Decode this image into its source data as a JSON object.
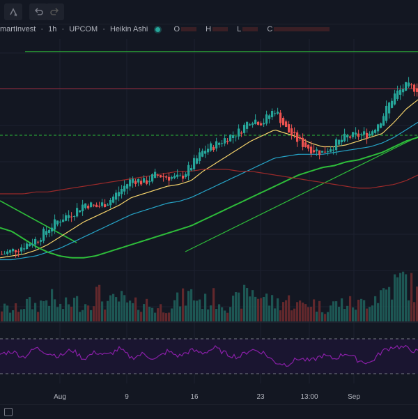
{
  "toolbar": {
    "indicator_icon": "indicators-remove-icon",
    "undo_icon": "undo-icon",
    "redo_icon": "redo-icon"
  },
  "legend": {
    "symbol": "martInvest",
    "interval": "1h",
    "exchange": "UPCOM",
    "chart_style": "Heikin Ashi",
    "sep": "·",
    "o_label": "O",
    "h_label": "H",
    "l_label": "L",
    "c_label": "C"
  },
  "x_axis": {
    "labels": [
      "Aug",
      "9",
      "16",
      "23",
      "13:00",
      "Sep"
    ]
  },
  "colors": {
    "background": "#131722",
    "up": "#26a69a",
    "down": "#ef5350",
    "ma_fast": "#f5d36b",
    "ma_mid": "#26a4c7",
    "ma_slow": "#2ebd3a",
    "ma_long": "#9b2a2a",
    "rsi": "#8a1fa8",
    "trendline": "#2ebd3a",
    "resistance": "#9b2a3a"
  },
  "chart_data": {
    "type": "candlestick",
    "style": "Heikin Ashi",
    "series": [
      {
        "type": "candles",
        "trend": [
          0.08,
          0.1,
          0.13,
          0.16,
          0.22,
          0.27,
          0.3,
          0.35,
          0.33,
          0.36,
          0.42,
          0.48,
          0.46,
          0.5,
          0.49,
          0.48,
          0.55,
          0.63,
          0.66,
          0.7,
          0.73,
          0.8,
          0.78,
          0.85,
          0.74,
          0.68,
          0.64,
          0.62,
          0.66,
          0.7,
          0.71,
          0.72,
          0.8,
          0.92,
          0.97,
          0.96
        ]
      },
      {
        "type": "moving-average",
        "trend": [
          0.06,
          0.07,
          0.08,
          0.1,
          0.13,
          0.17,
          0.21,
          0.25,
          0.28,
          0.31,
          0.34,
          0.38,
          0.4,
          0.42,
          0.44,
          0.45,
          0.47,
          0.52,
          0.56,
          0.6,
          0.64,
          0.68,
          0.71,
          0.74,
          0.72,
          0.7,
          0.67,
          0.65,
          0.65,
          0.66,
          0.68,
          0.7,
          0.72,
          0.78,
          0.85,
          0.9
        ]
      },
      {
        "type": "moving-average",
        "trend": [
          0.05,
          0.05,
          0.06,
          0.07,
          0.09,
          0.11,
          0.14,
          0.17,
          0.2,
          0.23,
          0.26,
          0.29,
          0.31,
          0.33,
          0.35,
          0.36,
          0.38,
          0.41,
          0.44,
          0.47,
          0.5,
          0.53,
          0.56,
          0.59,
          0.6,
          0.61,
          0.61,
          0.61,
          0.62,
          0.63,
          0.64,
          0.65,
          0.67,
          0.7,
          0.74,
          0.78
        ]
      },
      {
        "type": "moving-average",
        "trend": [
          0.22,
          0.2,
          0.16,
          0.12,
          0.09,
          0.07,
          0.06,
          0.06,
          0.07,
          0.09,
          0.11,
          0.13,
          0.15,
          0.17,
          0.19,
          0.21,
          0.23,
          0.26,
          0.29,
          0.32,
          0.35,
          0.38,
          0.41,
          0.44,
          0.47,
          0.5,
          0.52,
          0.54,
          0.55,
          0.57,
          0.58,
          0.6,
          0.62,
          0.65,
          0.68,
          0.7
        ]
      },
      {
        "type": "moving-average",
        "trend": [
          0.4,
          0.4,
          0.4,
          0.41,
          0.41,
          0.42,
          0.43,
          0.44,
          0.45,
          0.46,
          0.47,
          0.48,
          0.49,
          0.5,
          0.51,
          0.52,
          0.52,
          0.53,
          0.53,
          0.53,
          0.52,
          0.52,
          0.51,
          0.5,
          0.49,
          0.48,
          0.47,
          0.46,
          0.45,
          0.44,
          0.43,
          0.43,
          0.44,
          0.45,
          0.47,
          0.5
        ]
      }
    ],
    "volume_trend": [
      0.3,
      0.25,
      0.4,
      0.35,
      0.55,
      0.3,
      0.45,
      0.38,
      0.62,
      0.4,
      0.5,
      0.33,
      0.44,
      0.28,
      0.36,
      0.47,
      0.6,
      0.42,
      0.52,
      0.38,
      0.46,
      0.7,
      0.55,
      0.4,
      0.48,
      0.35,
      0.45,
      0.3,
      0.38,
      0.42,
      0.36,
      0.5,
      0.65,
      0.8,
      0.95,
      0.6
    ],
    "rsi_trend": [
      0.55,
      0.62,
      0.48,
      0.7,
      0.58,
      0.5,
      0.66,
      0.44,
      0.6,
      0.52,
      0.68,
      0.46,
      0.56,
      0.42,
      0.62,
      0.5,
      0.64,
      0.58,
      0.7,
      0.55,
      0.48,
      0.66,
      0.6,
      0.36,
      0.3,
      0.45,
      0.38,
      0.52,
      0.44,
      0.58,
      0.4,
      0.34,
      0.62,
      0.74,
      0.7,
      0.6
    ],
    "grid": true
  }
}
